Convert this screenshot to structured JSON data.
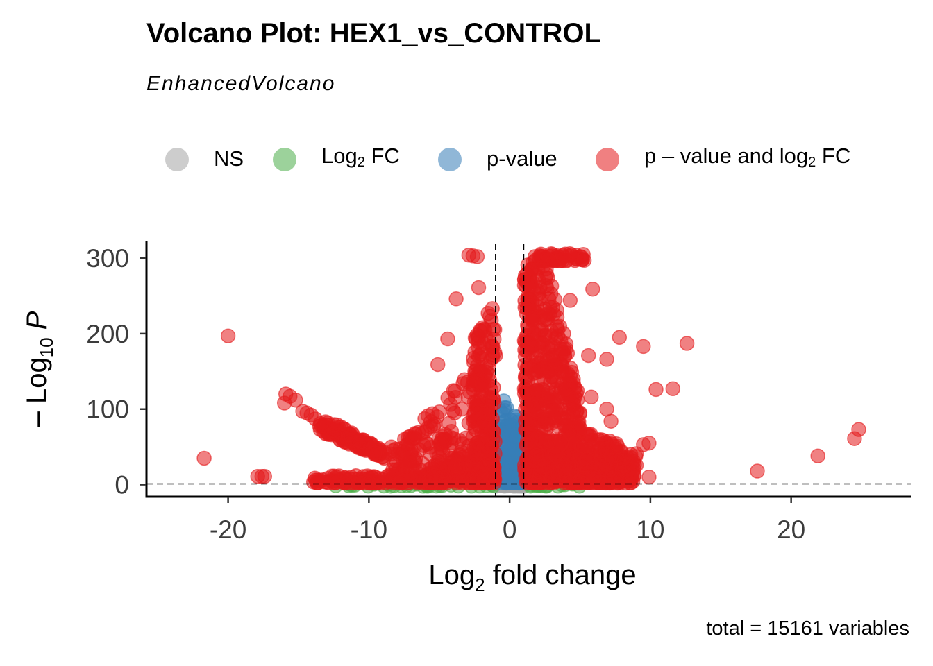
{
  "title": "Volcano Plot: HEX1_vs_CONTROL",
  "subtitle": "EnhancedVolcano",
  "caption": "total = 15161 variables",
  "legend": [
    {
      "key": "ns",
      "pre": "NS",
      "sub": "",
      "post": "",
      "color": "#a6a6a6"
    },
    {
      "key": "fc",
      "pre": "Log",
      "sub": "2",
      "post": " FC",
      "color": "#4daf4a"
    },
    {
      "key": "p",
      "pre": "p-value",
      "sub": "",
      "post": "",
      "color": "#377eb8"
    },
    {
      "key": "both",
      "pre": "p – value and log",
      "sub": "2",
      "post": " FC",
      "color": "#e41a1c"
    }
  ],
  "chart_data": {
    "type": "scatter",
    "title": "Volcano Plot: HEX1_vs_CONTROL",
    "subtitle": "EnhancedVolcano",
    "xlabel": {
      "pre": "Log",
      "sub": "2",
      "post": " fold change"
    },
    "ylabel": {
      "pre": "– Log",
      "sub": "10",
      "post": " P"
    },
    "xlim": [
      -25.8,
      28.5
    ],
    "ylim": [
      -16,
      323
    ],
    "xticks": [
      -20,
      -10,
      0,
      10,
      20
    ],
    "xtick_labels": [
      "-20",
      "-10",
      "0",
      "10",
      "20"
    ],
    "yticks": [
      0,
      100,
      200,
      300
    ],
    "ytick_labels": [
      "0",
      "100",
      "200",
      "300"
    ],
    "fc_cutoff": [
      -1,
      1
    ],
    "p_cutoff_line": 1,
    "grid": false,
    "legend_position": "top",
    "colors": {
      "ns": "#a6a6a6",
      "fc": "#4daf4a",
      "p": "#377eb8",
      "both": "#e41a1c"
    },
    "outlier_points": [
      {
        "x": -21.7,
        "y": 35,
        "group": "both"
      },
      {
        "x": -20.0,
        "y": 197,
        "group": "both"
      },
      {
        "x": -17.9,
        "y": 11,
        "group": "both"
      },
      {
        "x": -17.6,
        "y": 11,
        "group": "both"
      },
      {
        "x": -17.4,
        "y": 11,
        "group": "both"
      },
      {
        "x": -15.9,
        "y": 120,
        "group": "both"
      },
      {
        "x": -15.6,
        "y": 117,
        "group": "both"
      },
      {
        "x": -16.0,
        "y": 108,
        "group": "both"
      },
      {
        "x": -15.2,
        "y": 112,
        "group": "both"
      },
      {
        "x": -14.7,
        "y": 97,
        "group": "both"
      },
      {
        "x": -14.4,
        "y": 95,
        "group": "both"
      },
      {
        "x": -14.1,
        "y": 92,
        "group": "both"
      },
      {
        "x": -13.8,
        "y": 87,
        "group": "both"
      },
      {
        "x": -8.4,
        "y": 50,
        "group": "both"
      },
      {
        "x": -8.1,
        "y": 47,
        "group": "both"
      },
      {
        "x": -7.0,
        "y": 41,
        "group": "both"
      },
      {
        "x": -6.0,
        "y": 70,
        "group": "both"
      },
      {
        "x": -5.1,
        "y": 159,
        "group": "both"
      },
      {
        "x": -4.4,
        "y": 193,
        "group": "both"
      },
      {
        "x": -3.8,
        "y": 246,
        "group": "both"
      },
      {
        "x": -3.4,
        "y": 100,
        "group": "both"
      },
      {
        "x": -2.9,
        "y": 304,
        "group": "both"
      },
      {
        "x": -2.6,
        "y": 303,
        "group": "both"
      },
      {
        "x": -2.3,
        "y": 302,
        "group": "both"
      },
      {
        "x": -2.2,
        "y": 261,
        "group": "both"
      },
      {
        "x": -1.7,
        "y": 196,
        "group": "both"
      },
      {
        "x": 1.8,
        "y": 302,
        "group": "both"
      },
      {
        "x": 5.3,
        "y": 297,
        "group": "both"
      },
      {
        "x": 5.9,
        "y": 259,
        "group": "both"
      },
      {
        "x": 4.3,
        "y": 244,
        "group": "both"
      },
      {
        "x": 5.6,
        "y": 171,
        "group": "both"
      },
      {
        "x": 5.8,
        "y": 116,
        "group": "both"
      },
      {
        "x": 6.9,
        "y": 166,
        "group": "both"
      },
      {
        "x": 7.8,
        "y": 195,
        "group": "both"
      },
      {
        "x": 6.9,
        "y": 100,
        "group": "both"
      },
      {
        "x": 7.2,
        "y": 84,
        "group": "both"
      },
      {
        "x": 7.6,
        "y": 54,
        "group": "both"
      },
      {
        "x": 9.0,
        "y": 41,
        "group": "both"
      },
      {
        "x": 9.5,
        "y": 53,
        "group": "both"
      },
      {
        "x": 9.9,
        "y": 55,
        "group": "both"
      },
      {
        "x": 9.5,
        "y": 183,
        "group": "both"
      },
      {
        "x": 10.4,
        "y": 126,
        "group": "both"
      },
      {
        "x": 11.6,
        "y": 127,
        "group": "both"
      },
      {
        "x": 12.6,
        "y": 187,
        "group": "both"
      },
      {
        "x": 9.9,
        "y": 10,
        "group": "both"
      },
      {
        "x": 7.2,
        "y": 6,
        "group": "both"
      },
      {
        "x": 17.6,
        "y": 18,
        "group": "both"
      },
      {
        "x": 21.9,
        "y": 38,
        "group": "both"
      },
      {
        "x": 24.5,
        "y": 61,
        "group": "both"
      },
      {
        "x": 24.8,
        "y": 73,
        "group": "both"
      }
    ],
    "point_clouds": [
      {
        "group": "both",
        "shape": "band",
        "x0": -13.5,
        "x1": -8.8,
        "y_lo0": 70,
        "y_hi0": 92,
        "y_lo1": 34,
        "y_hi1": 44,
        "n": 120
      },
      {
        "group": "both",
        "shape": "band",
        "x0": -14.0,
        "x1": -5.5,
        "y_lo0": 2,
        "y_hi0": 12,
        "y_lo1": 2,
        "y_hi1": 12,
        "n": 110
      },
      {
        "group": "both",
        "shape": "band",
        "x0": -6.0,
        "x1": -1.0,
        "y_lo0": 2,
        "y_hi0": 20,
        "y_lo1": 2,
        "y_hi1": 60,
        "n": 140
      },
      {
        "group": "both",
        "shape": "band",
        "x0": -8.6,
        "x1": -1.0,
        "y_lo0": 2,
        "y_hi0": 40,
        "y_lo1": 2,
        "y_hi1": 180,
        "n": 220
      },
      {
        "group": "both",
        "shape": "band",
        "x0": -2.6,
        "x1": -1.05,
        "y_lo0": 2,
        "y_hi0": 200,
        "y_lo1": 2,
        "y_hi1": 245,
        "n": 200
      },
      {
        "group": "both",
        "shape": "band",
        "x0": 1.05,
        "x1": 2.8,
        "y_lo0": 2,
        "y_hi0": 300,
        "y_lo1": 2,
        "y_hi1": 305,
        "n": 320
      },
      {
        "group": "both",
        "shape": "band",
        "x0": 2.8,
        "x1": 5.0,
        "y_lo0": 2,
        "y_hi0": 280,
        "y_lo1": 2,
        "y_hi1": 120,
        "n": 300
      },
      {
        "group": "both",
        "shape": "band",
        "x0": 5.0,
        "x1": 9.0,
        "y_lo0": 2,
        "y_hi0": 80,
        "y_lo1": 2,
        "y_hi1": 40,
        "n": 200
      },
      {
        "group": "both",
        "shape": "band",
        "x0": 2.0,
        "x1": 5.3,
        "y_lo0": 296,
        "y_hi0": 306,
        "y_lo1": 296,
        "y_hi1": 306,
        "n": 50
      },
      {
        "group": "both",
        "shape": "band",
        "x0": 5.0,
        "x1": 7.3,
        "y_lo0": 2,
        "y_hi0": 12,
        "y_lo1": 2,
        "y_hi1": 10,
        "n": 60
      },
      {
        "group": "p",
        "shape": "band",
        "x0": -1.0,
        "x1": 1.0,
        "y_lo0": 2,
        "y_hi0": 125,
        "y_lo1": 2,
        "y_hi1": 80,
        "n": 170
      },
      {
        "group": "ns",
        "shape": "band",
        "x0": -1.0,
        "x1": 1.0,
        "y_lo0": -2,
        "y_hi0": 2,
        "y_lo1": -2,
        "y_hi1": 2,
        "n": 60
      },
      {
        "group": "fc",
        "shape": "band",
        "x0": -12.5,
        "x1": -1.0,
        "y_lo0": -2,
        "y_hi0": 1,
        "y_lo1": -2,
        "y_hi1": 1,
        "n": 30
      },
      {
        "group": "fc",
        "shape": "band",
        "x0": 1.0,
        "x1": 5.0,
        "y_lo0": -2,
        "y_hi0": 1,
        "y_lo1": -2,
        "y_hi1": 1,
        "n": 15
      }
    ]
  }
}
